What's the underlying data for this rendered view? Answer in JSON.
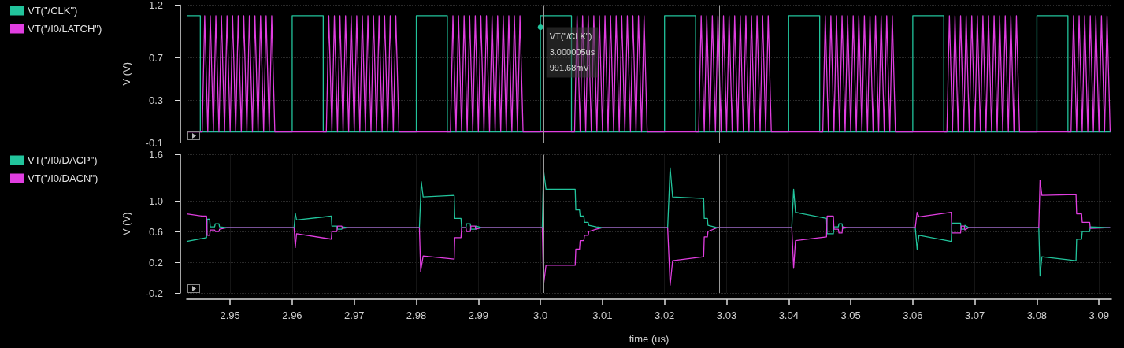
{
  "chart_data": [
    {
      "type": "line",
      "ylabel": "V (V)",
      "xlim": [
        2.943,
        3.092
      ],
      "ylim": [
        -0.1,
        1.2
      ],
      "yticks": [
        1.2,
        0.7,
        0.3,
        -0.1
      ],
      "tick_labels": "y",
      "grid": true,
      "legend": "top left",
      "annotations": [
        {
          "text": "VT(\"/CLK\")\n3.000005us\n991.68mV",
          "x": 3.000005,
          "y": 0.99168
        }
      ],
      "ref_lines": [
        {
          "axis": "x",
          "value": 3.0005,
          "color": "#9a9a9a"
        },
        {
          "axis": "x",
          "value": 3.0288,
          "color": "#9a9a9a"
        }
      ],
      "series": [
        {
          "name": "VT(\"/CLK\")",
          "color": "#22c49c",
          "x": [
            2.943,
            2.9452,
            2.9452,
            2.96,
            2.96,
            2.965,
            2.965,
            2.98,
            2.98,
            2.985,
            2.985,
            3.0,
            3.0,
            3.005,
            3.005,
            3.02,
            3.02,
            3.025,
            3.025,
            3.04,
            3.04,
            3.045,
            3.045,
            3.06,
            3.06,
            3.065,
            3.065,
            3.08,
            3.08,
            3.085,
            3.085,
            3.092
          ],
          "values": [
            1.1,
            1.1,
            0,
            0,
            1.1,
            1.1,
            0,
            0,
            1.1,
            1.1,
            0,
            0,
            1.1,
            1.1,
            0,
            0,
            1.1,
            1.1,
            0,
            0,
            1.1,
            1.1,
            0,
            0,
            1.1,
            1.1,
            0,
            0,
            1.1,
            1.1,
            0,
            0
          ]
        },
        {
          "name": "VT(\"/I0/LATCH\")",
          "color": "#e03ee0",
          "x": [
            2.943,
            2.9455,
            2.9459,
            2.9464,
            2.9468,
            2.9473,
            2.9477,
            2.9482,
            2.9486,
            2.9491,
            2.9495,
            2.95,
            2.9504,
            2.9509,
            2.9513,
            2.9518,
            2.9522,
            2.9527,
            2.9531,
            2.9536,
            2.954,
            2.9545,
            2.9549,
            2.9554,
            2.9558,
            2.9563,
            2.9567,
            2.9572,
            2.9655,
            2.9659,
            2.9664,
            2.9668,
            2.9673,
            2.9677,
            2.9682,
            2.9686,
            2.9691,
            2.9695,
            2.97,
            2.9704,
            2.9709,
            2.9713,
            2.9718,
            2.9722,
            2.9727,
            2.9731,
            2.9736,
            2.974,
            2.9745,
            2.9749,
            2.9754,
            2.9758,
            2.9763,
            2.9767,
            2.9772,
            2.9855,
            2.9859,
            2.9864,
            2.9868,
            2.9873,
            2.9877,
            2.9882,
            2.9886,
            2.9891,
            2.9895,
            2.99,
            2.9904,
            2.9909,
            2.9913,
            2.9918,
            2.9922,
            2.9927,
            2.9931,
            2.9936,
            2.994,
            2.9945,
            2.9949,
            2.9954,
            2.9958,
            2.9963,
            2.9967,
            2.9972,
            3.0055,
            3.0059,
            3.0064,
            3.0068,
            3.0073,
            3.0077,
            3.0082,
            3.0086,
            3.0091,
            3.0095,
            3.01,
            3.0104,
            3.0109,
            3.0113,
            3.0118,
            3.0122,
            3.0127,
            3.0131,
            3.0136,
            3.014,
            3.0145,
            3.0149,
            3.0154,
            3.0158,
            3.0163,
            3.0167,
            3.0172,
            3.0255,
            3.0259,
            3.0264,
            3.0268,
            3.0273,
            3.0277,
            3.0282,
            3.0286,
            3.0291,
            3.0295,
            3.03,
            3.0304,
            3.0309,
            3.0313,
            3.0318,
            3.0322,
            3.0327,
            3.0331,
            3.0336,
            3.034,
            3.0345,
            3.0349,
            3.0354,
            3.0358,
            3.0363,
            3.0367,
            3.0372,
            3.0455,
            3.0459,
            3.0464,
            3.0468,
            3.0473,
            3.0477,
            3.0482,
            3.0486,
            3.0491,
            3.0495,
            3.05,
            3.0504,
            3.0509,
            3.0513,
            3.0518,
            3.0522,
            3.0527,
            3.0531,
            3.0536,
            3.054,
            3.0545,
            3.0549,
            3.0554,
            3.0558,
            3.0563,
            3.0567,
            3.0572,
            3.0655,
            3.0659,
            3.0664,
            3.0668,
            3.0673,
            3.0677,
            3.0682,
            3.0686,
            3.0691,
            3.0695,
            3.07,
            3.0704,
            3.0709,
            3.0713,
            3.0718,
            3.0722,
            3.0727,
            3.0731,
            3.0736,
            3.074,
            3.0745,
            3.0749,
            3.0754,
            3.0758,
            3.0763,
            3.0767,
            3.0772,
            3.0855,
            3.0859,
            3.0864,
            3.0868,
            3.0873,
            3.0877,
            3.0882,
            3.0886,
            3.0891,
            3.0895,
            3.09,
            3.0904,
            3.0909,
            3.0913,
            3.0918
          ],
          "values": [
            0,
            0,
            1.1,
            0,
            1.1,
            0,
            1.1,
            0,
            1.1,
            0,
            1.1,
            0,
            1.1,
            0,
            1.1,
            0,
            1.1,
            0,
            1.1,
            0,
            1.1,
            0,
            1.1,
            0,
            1.1,
            0,
            1.1,
            0,
            0,
            1.1,
            0,
            1.1,
            0,
            1.1,
            0,
            1.1,
            0,
            1.1,
            0,
            1.1,
            0,
            1.1,
            0,
            1.1,
            0,
            1.1,
            0,
            1.1,
            0,
            1.1,
            0,
            1.1,
            0,
            1.1,
            0,
            0,
            1.1,
            0,
            1.1,
            0,
            1.1,
            0,
            1.1,
            0,
            1.1,
            0,
            1.1,
            0,
            1.1,
            0,
            1.1,
            0,
            1.1,
            0,
            1.1,
            0,
            1.1,
            0,
            1.1,
            0,
            1.1,
            0,
            0,
            1.1,
            0,
            1.1,
            0,
            1.1,
            0,
            1.1,
            0,
            1.1,
            0,
            1.1,
            0,
            1.1,
            0,
            1.1,
            0,
            1.1,
            0,
            1.1,
            0,
            1.1,
            0,
            1.1,
            0,
            1.1,
            0,
            0,
            1.1,
            0,
            1.1,
            0,
            1.1,
            0,
            1.1,
            0,
            1.1,
            0,
            1.1,
            0,
            1.1,
            0,
            1.1,
            0,
            1.1,
            0,
            1.1,
            0,
            1.1,
            0,
            1.1,
            0,
            1.1,
            0,
            0,
            1.1,
            0,
            1.1,
            0,
            1.1,
            0,
            1.1,
            0,
            1.1,
            0,
            1.1,
            0,
            1.1,
            0,
            1.1,
            0,
            1.1,
            0,
            1.1,
            0,
            1.1,
            0,
            1.1,
            0,
            1.1,
            0,
            0,
            1.1,
            0,
            1.1,
            0,
            1.1,
            0,
            1.1,
            0,
            1.1,
            0,
            1.1,
            0,
            1.1,
            0,
            1.1,
            0,
            1.1,
            0,
            1.1,
            0,
            1.1,
            0,
            1.1,
            0,
            1.1,
            0,
            0,
            1.1,
            0,
            1.1,
            0,
            1.1,
            0,
            1.1,
            0,
            1.1,
            0,
            1.1,
            0,
            1.1,
            0
          ]
        }
      ]
    },
    {
      "type": "line",
      "xlabel": "time (us)",
      "ylabel": "V (V)",
      "xlim": [
        2.943,
        3.092
      ],
      "xticks": [
        2.95,
        2.96,
        2.97,
        2.98,
        2.99,
        {
          "value": 3,
          "label": "3.0"
        },
        3.01,
        3.02,
        3.03,
        3.04,
        3.05,
        3.06,
        3.07,
        3.08,
        3.09
      ],
      "ylim": [
        -0.2,
        1.6
      ],
      "yticks": [
        1.6,
        {
          "value": 1,
          "label": "1.0"
        },
        0.6,
        0.2,
        -0.2
      ],
      "grid": true,
      "legend": "top left",
      "ref_lines": [
        {
          "axis": "x",
          "value": 3.0005,
          "color": "#9a9a9a"
        },
        {
          "axis": "x",
          "value": 3.0288,
          "color": "#9a9a9a"
        }
      ],
      "series": [
        {
          "name": "VT(\"/I0/DACP\")",
          "color": "#22c49c",
          "x": [
            2.943,
            2.9462,
            2.9463,
            2.9467,
            2.9468,
            2.9475,
            2.9476,
            2.9482,
            2.9483,
            2.9495,
            2.9603,
            2.9605,
            2.9607,
            2.9663,
            2.9664,
            2.9672,
            2.9673,
            2.968,
            2.9681,
            2.969,
            2.9805,
            2.9808,
            2.9811,
            2.9861,
            2.9862,
            2.9872,
            2.9873,
            2.988,
            2.9881,
            2.9887,
            2.9888,
            2.9895,
            2.9896,
            2.9905,
            3.0003,
            3.0005,
            3.0009,
            3.0056,
            3.0057,
            3.0063,
            3.0064,
            3.007,
            3.0071,
            3.0077,
            3.0078,
            3.009,
            3.01,
            3.0205,
            3.0209,
            3.0213,
            3.0263,
            3.0264,
            3.0269,
            3.027,
            3.0285,
            3.0405,
            3.0408,
            3.0411,
            3.0461,
            3.0462,
            3.0472,
            3.0473,
            3.048,
            3.0481,
            3.0486,
            3.0487,
            3.0495,
            3.0604,
            3.0607,
            3.061,
            3.0662,
            3.0663,
            3.0677,
            3.0678,
            3.0683,
            3.0684,
            3.069,
            3.0803,
            3.0805,
            3.0808,
            3.0863,
            3.0864,
            3.0872,
            3.0873,
            3.0885,
            3.0886,
            3.0918
          ],
          "values": [
            0.47,
            0.52,
            0.76,
            0.76,
            0.66,
            0.66,
            0.7,
            0.7,
            0.66,
            0.65,
            0.65,
            0.84,
            0.75,
            0.8,
            0.67,
            0.67,
            0.63,
            0.63,
            0.66,
            0.65,
            0.65,
            1.25,
            1.05,
            1.07,
            0.77,
            0.77,
            0.65,
            0.65,
            0.7,
            0.7,
            0.63,
            0.63,
            0.67,
            0.65,
            0.65,
            1.4,
            1.15,
            1.15,
            0.88,
            0.88,
            0.8,
            0.8,
            0.72,
            0.72,
            0.68,
            0.66,
            0.65,
            0.65,
            1.43,
            1.05,
            1.03,
            0.77,
            0.77,
            0.68,
            0.65,
            0.65,
            1.15,
            0.85,
            0.77,
            0.57,
            0.57,
            0.66,
            0.66,
            0.7,
            0.7,
            0.64,
            0.65,
            0.65,
            0.37,
            0.55,
            0.47,
            0.71,
            0.71,
            0.63,
            0.63,
            0.68,
            0.65,
            0.65,
            0.02,
            0.27,
            0.22,
            0.5,
            0.5,
            0.6,
            0.6,
            0.66,
            0.65
          ]
        },
        {
          "name": "VT(\"/I0/DACN\")",
          "color": "#e03ee0",
          "x": [
            2.943,
            2.9455,
            2.9462,
            2.9463,
            2.9467,
            2.9468,
            2.9475,
            2.9476,
            2.9482,
            2.9483,
            2.9495,
            2.9603,
            2.9605,
            2.9607,
            2.9663,
            2.9664,
            2.9672,
            2.9673,
            2.968,
            2.9681,
            2.969,
            2.9805,
            2.9807,
            2.9811,
            2.9861,
            2.9862,
            2.9872,
            2.9873,
            2.988,
            2.9881,
            2.9887,
            2.9888,
            2.9895,
            2.9896,
            2.9905,
            3.0003,
            3.0005,
            3.0009,
            3.0056,
            3.0057,
            3.0063,
            3.0064,
            3.007,
            3.0071,
            3.0077,
            3.0078,
            3.009,
            3.01,
            3.0205,
            3.0209,
            3.0213,
            3.0263,
            3.0264,
            3.0269,
            3.027,
            3.0285,
            3.0405,
            3.0408,
            3.0411,
            3.0461,
            3.0462,
            3.0472,
            3.0473,
            3.048,
            3.0481,
            3.0486,
            3.0487,
            3.0495,
            3.0604,
            3.0607,
            3.061,
            3.0662,
            3.0663,
            3.0677,
            3.0678,
            3.0683,
            3.0684,
            3.069,
            3.0803,
            3.0805,
            3.0808,
            3.0863,
            3.0864,
            3.0872,
            3.0873,
            3.0885,
            3.0886,
            3.0918
          ],
          "values": [
            0.83,
            0.8,
            0.8,
            0.55,
            0.55,
            0.62,
            0.62,
            0.6,
            0.6,
            0.63,
            0.65,
            0.65,
            0.39,
            0.57,
            0.5,
            0.6,
            0.6,
            0.67,
            0.67,
            0.64,
            0.65,
            0.65,
            0.08,
            0.28,
            0.24,
            0.52,
            0.52,
            0.65,
            0.65,
            0.6,
            0.6,
            0.67,
            0.67,
            0.63,
            0.65,
            0.65,
            -0.1,
            0.16,
            0.16,
            0.37,
            0.37,
            0.48,
            0.48,
            0.55,
            0.55,
            0.6,
            0.63,
            0.65,
            0.65,
            -0.1,
            0.22,
            0.27,
            0.53,
            0.53,
            0.6,
            0.65,
            0.65,
            0.12,
            0.48,
            0.53,
            0.8,
            0.8,
            0.63,
            0.63,
            0.58,
            0.58,
            0.66,
            0.65,
            0.65,
            0.85,
            0.79,
            0.85,
            0.58,
            0.58,
            0.67,
            0.67,
            0.62,
            0.65,
            0.65,
            1.27,
            1.07,
            1.08,
            0.83,
            0.83,
            0.72,
            0.72,
            0.64,
            0.65
          ]
        }
      ]
    }
  ]
}
